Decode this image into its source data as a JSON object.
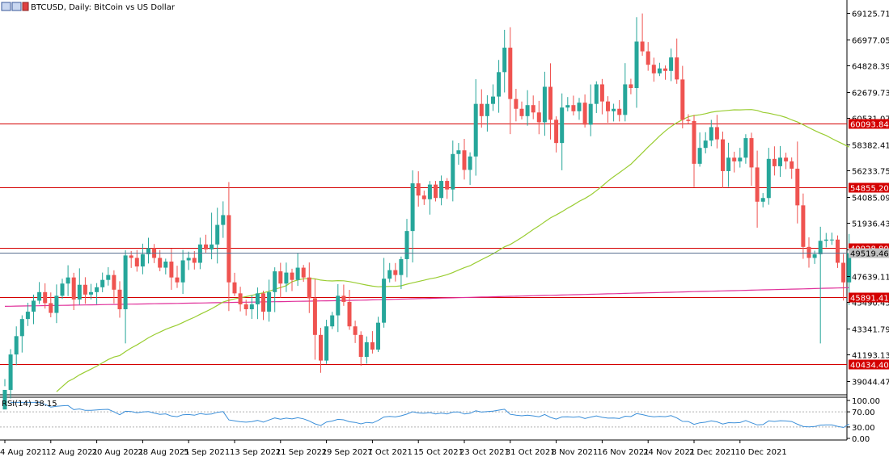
{
  "chart_title": "BTCUSD, Daily:  BitCoin vs US Dollar",
  "colors": {
    "background": "#ffffff",
    "bull": "#26a69a",
    "bear": "#ef5350",
    "ma_fast": "#9acd32",
    "ma_slow": "#e0309a",
    "level_line": "#d40000",
    "rsi_line": "#3b8fd9",
    "grid_dotted": "#b0b0b0",
    "price_line": "#5a7090"
  },
  "chart_data": {
    "type": "candlestick",
    "symbol": "BTCUSD",
    "timeframe": "Daily",
    "price_axis": {
      "ylim": [
        37900,
        70200
      ],
      "ticks": [
        "69125.710",
        "66977.050",
        "64828.390",
        "62679.730",
        "60531.070",
        "58382.410",
        "56233.750",
        "54085.090",
        "51936.430",
        "49787.770",
        "47639.110",
        "45490.450",
        "43341.790",
        "41193.130",
        "39044.470"
      ]
    },
    "x_labels": [
      "4 Aug 2021",
      "12 Aug 2021",
      "20 Aug 2021",
      "28 Aug 2021",
      "5 Sep 2021",
      "13 Sep 2021",
      "21 Sep 2021",
      "29 Sep 2021",
      "7 Oct 2021",
      "15 Oct 2021",
      "23 Oct 2021",
      "31 Oct 2021",
      "8 Nov 2021",
      "16 Nov 2021",
      "24 Nov 2021",
      "2 Dec 2021",
      "10 Dec 2021"
    ],
    "level_lines": [
      {
        "value": 60093.845,
        "label": "60093.845"
      },
      {
        "value": 54855.207,
        "label": "54855.207"
      },
      {
        "value": 49928.803,
        "label": "49928.803"
      },
      {
        "value": 45891.413,
        "label": "45891.413"
      },
      {
        "value": 40434.404,
        "label": "40434.404"
      }
    ],
    "current_price": 49519.0,
    "current_price_label": "49519.463",
    "closes": [
      38300,
      41200,
      42700,
      44100,
      44700,
      45600,
      46300,
      45400,
      44600,
      46000,
      47000,
      47500,
      45700,
      46900,
      46100,
      46300,
      46700,
      47300,
      47700,
      46500,
      44900,
      49300,
      49100,
      48400,
      49400,
      49900,
      49100,
      48300,
      48800,
      47500,
      47100,
      48900,
      49100,
      48700,
      50200,
      49800,
      50200,
      51800,
      52600,
      47100,
      46200,
      45300,
      44900,
      45300,
      46200,
      44700,
      46300,
      48000,
      47000,
      47900,
      47300,
      48300,
      47500,
      45800,
      42800,
      40700,
      43500,
      44400,
      46000,
      45500,
      43500,
      42800,
      41000,
      42200,
      41600,
      43800,
      47400,
      48100,
      47700,
      49000,
      51300,
      55200,
      54200,
      53900,
      55100,
      54000,
      55400,
      54700,
      57600,
      57900,
      56300,
      57400,
      61700,
      60700,
      61700,
      62300,
      64300,
      66300,
      62100,
      61300,
      60700,
      61600,
      61000,
      60200,
      63100,
      60400,
      58500,
      61400,
      61600,
      61100,
      61800,
      60000,
      61700,
      63300,
      61900,
      61100,
      61300,
      60800,
      63300,
      63000,
      66800,
      66000,
      64900,
      64200,
      64600,
      64400,
      65500,
      63700,
      60400,
      60300,
      56800,
      58100,
      58700,
      59800,
      58800,
      56200,
      57300,
      57000,
      57300,
      58900,
      56500,
      53700,
      54000,
      57200,
      56600,
      57300,
      57000,
      56400,
      53400,
      50000,
      49100,
      49400,
      50500,
      50600,
      50600,
      48700,
      47100,
      49500
    ]
  },
  "rsi": {
    "label": "RSI(14) 38.15",
    "ylim": [
      0,
      100
    ],
    "ticks": [
      "100.00",
      "70.00",
      "30.00",
      "0.00"
    ],
    "levels": [
      70,
      30
    ]
  }
}
